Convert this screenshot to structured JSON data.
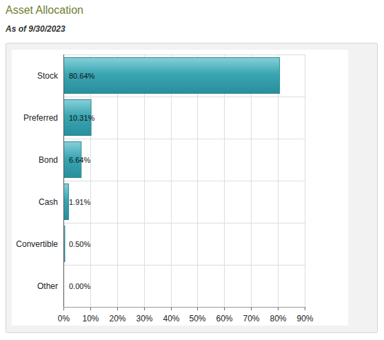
{
  "chart_data": {
    "type": "bar",
    "title": "Asset Allocation",
    "subtitle": "As of 9/30/2023",
    "orientation": "horizontal",
    "categories": [
      "Stock",
      "Preferred",
      "Bond",
      "Cash",
      "Convertible",
      "Other"
    ],
    "values": [
      80.64,
      10.31,
      6.64,
      1.91,
      0.5,
      0
    ],
    "value_labels": [
      "80.64%",
      "10.31%",
      "6.64%",
      "1.91%",
      "0.50%",
      "0.00%"
    ],
    "data_labels": true,
    "color": "#3aa6b3",
    "xlim": [
      0,
      90
    ],
    "xticks": [
      {
        "value": 0,
        "label": "0%"
      },
      {
        "value": 10,
        "label": "10%"
      },
      {
        "value": 20,
        "label": "20%"
      },
      {
        "value": 30,
        "label": "30%"
      },
      {
        "value": 40,
        "label": "40%"
      },
      {
        "value": 50,
        "label": "50%"
      },
      {
        "value": 60,
        "label": "60%"
      },
      {
        "value": 70,
        "label": "70%"
      },
      {
        "value": 80,
        "label": "80%"
      },
      {
        "value": 90,
        "label": "90%"
      }
    ],
    "grid": true
  }
}
